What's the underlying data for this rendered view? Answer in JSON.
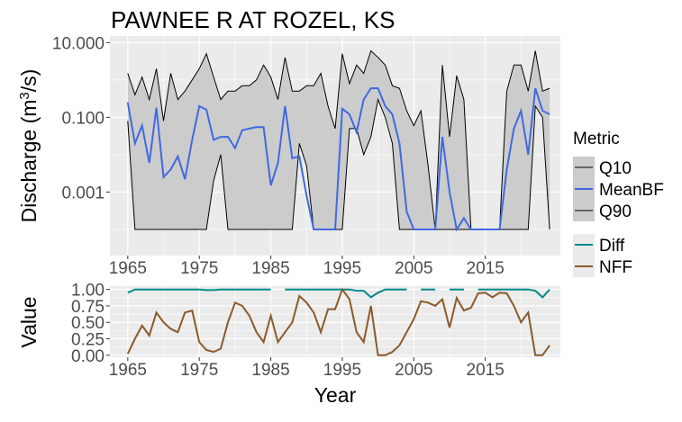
{
  "colors": {
    "panel_bg": "#ebebeb",
    "ribbon_fill": "#cccccc",
    "q_line": "#000000",
    "meanbf": "#4169e1",
    "diff": "#008b8b",
    "nff": "#8b5a2b",
    "axis_text": "#4d4d4d"
  },
  "chart_data": [
    {
      "type": "line",
      "title": "PAWNEE R AT ROZEL, KS",
      "ylabel_prefix": "Discharge (m",
      "ylabel_sup": "3",
      "ylabel_suffix": "/s)",
      "xlabel": "",
      "yscale": "log10",
      "ylim": [
        2e-05,
        15
      ],
      "xlim": [
        1962.5,
        2025.5
      ],
      "xticks": [
        "1965",
        "1975",
        "1985",
        "1995",
        "2005",
        "2015"
      ],
      "yticks": [
        "10.000",
        "0.100",
        "0.001"
      ],
      "x": [
        1965,
        1966,
        1967,
        1968,
        1969,
        1970,
        1971,
        1972,
        1973,
        1974,
        1975,
        1976,
        1977,
        1978,
        1979,
        1980,
        1981,
        1982,
        1983,
        1984,
        1985,
        1986,
        1987,
        1988,
        1989,
        1990,
        1991,
        1992,
        1993,
        1994,
        1995,
        1996,
        1997,
        1998,
        1999,
        2000,
        2001,
        2002,
        2003,
        2004,
        2005,
        2006,
        2007,
        2008,
        2009,
        2010,
        2011,
        2012,
        2013,
        2014,
        2015,
        2016,
        2017,
        2018,
        2019,
        2020,
        2021,
        2022,
        2023,
        2024
      ],
      "series": [
        {
          "name": "Q10",
          "values": [
            0.08,
            0.0001,
            0.0001,
            0.0001,
            0.0001,
            0.0001,
            0.0001,
            0.0001,
            0.0001,
            0.0001,
            0.0001,
            0.0001,
            0.002,
            0.01,
            0.0001,
            0.0001,
            0.0001,
            0.0001,
            0.0001,
            0.0001,
            0.0001,
            0.0001,
            0.0001,
            0.0001,
            0.02,
            0.005,
            0.0001,
            0.0001,
            0.0001,
            0.0001,
            0.0001,
            0.05,
            0.05,
            0.01,
            0.03,
            0.3,
            0.1,
            0.02,
            0.0001,
            0.0001,
            0.0001,
            0.0001,
            0.0001,
            0.0001,
            0.0001,
            0.0001,
            0.0001,
            0.0001,
            0.0001,
            0.0001,
            0.0001,
            0.0001,
            0.0001,
            0.0001,
            0.0001,
            0.0001,
            0.0001,
            0.2,
            0.1,
            0.0001
          ]
        },
        {
          "name": "MeanBF",
          "values": [
            0.25,
            0.02,
            0.06,
            0.006,
            0.18,
            0.0025,
            0.004,
            0.009,
            0.0022,
            0.025,
            0.2,
            0.16,
            0.025,
            0.03,
            0.03,
            0.015,
            0.045,
            0.05,
            0.055,
            0.055,
            0.0015,
            0.006,
            0.2,
            0.008,
            0.009,
            0.0008,
            0.0001,
            0.0001,
            0.0001,
            0.0001,
            0.17,
            0.12,
            0.04,
            0.3,
            0.6,
            0.6,
            0.2,
            0.12,
            0.02,
            0.0003,
            0.0001,
            0.0001,
            0.0001,
            0.0001,
            0.03,
            0.001,
            0.0001,
            0.0002,
            0.0001,
            0.0001,
            0.0001,
            0.0001,
            0.0001,
            0.004,
            0.05,
            0.15,
            0.01,
            0.6,
            0.15,
            0.12
          ]
        },
        {
          "name": "Q90",
          "values": [
            1.5,
            0.4,
            1.2,
            0.3,
            2,
            0.08,
            1.5,
            0.3,
            0.5,
            1,
            2,
            5,
            1.2,
            0.3,
            0.5,
            0.5,
            0.7,
            0.7,
            1,
            2.5,
            1.2,
            0.3,
            4,
            0.5,
            0.5,
            0.7,
            0.7,
            1.5,
            0.2,
            0.05,
            5,
            0.8,
            2.5,
            1.5,
            6,
            4,
            2.5,
            0.7,
            0.6,
            0.15,
            0.06,
            0.15,
            0.005,
            0.0001,
            2.5,
            0.03,
            1.3,
            0.3,
            0.0001,
            0.0001,
            0.0001,
            0.0001,
            0.0001,
            0.5,
            2.5,
            2.5,
            0.5,
            6,
            0.5,
            0.6
          ]
        }
      ],
      "legend": {
        "title": "Metric",
        "placement": "right",
        "entries": [
          "Q10",
          "MeanBF",
          "Q90"
        ]
      }
    },
    {
      "type": "line",
      "title": "",
      "ylabel": "Value",
      "xlabel": "Year",
      "ylim": [
        -0.03,
        1.05
      ],
      "xlim": [
        1962.5,
        2025.5
      ],
      "xticks": [
        "1965",
        "1975",
        "1985",
        "1995",
        "2005",
        "2015"
      ],
      "yticks": [
        "1.00",
        "0.75",
        "0.50",
        "0.25",
        "0.00"
      ],
      "x": [
        1965,
        1966,
        1967,
        1968,
        1969,
        1970,
        1971,
        1972,
        1973,
        1974,
        1975,
        1976,
        1977,
        1978,
        1979,
        1980,
        1981,
        1982,
        1983,
        1984,
        1985,
        1986,
        1987,
        1988,
        1989,
        1990,
        1991,
        1992,
        1993,
        1994,
        1995,
        1996,
        1997,
        1998,
        1999,
        2000,
        2001,
        2002,
        2003,
        2004,
        2005,
        2006,
        2007,
        2008,
        2009,
        2010,
        2011,
        2012,
        2013,
        2014,
        2015,
        2016,
        2017,
        2018,
        2019,
        2020,
        2021,
        2022,
        2023,
        2024
      ],
      "series": [
        {
          "name": "Diff",
          "values": [
            0.95,
            1.0,
            1.0,
            1.0,
            1.0,
            1.0,
            1.0,
            1.0,
            1.0,
            1.0,
            1.0,
            0.99,
            0.99,
            1.0,
            1.0,
            1.0,
            1.0,
            1.0,
            1.0,
            1.0,
            1.0,
            null,
            1.0,
            1.0,
            1.0,
            1.0,
            1.0,
            1.0,
            1.0,
            1.0,
            1.0,
            1.0,
            0.98,
            0.98,
            0.88,
            0.95,
            1.0,
            1.0,
            1.0,
            1.0,
            null,
            1.0,
            1.0,
            1.0,
            null,
            1.0,
            1.0,
            1.0,
            null,
            1.0,
            1.0,
            1.0,
            1.0,
            1.0,
            1.0,
            1.0,
            1.0,
            0.98,
            0.88,
            1.0
          ]
        },
        {
          "name": "NFF",
          "values": [
            0.02,
            0.25,
            0.45,
            0.3,
            0.65,
            0.5,
            0.4,
            0.35,
            0.65,
            0.68,
            0.2,
            0.08,
            0.05,
            0.1,
            0.5,
            0.8,
            0.75,
            0.6,
            0.35,
            0.2,
            0.6,
            0.2,
            0.35,
            0.5,
            0.9,
            0.8,
            0.65,
            0.35,
            0.7,
            0.7,
            1.0,
            0.85,
            0.35,
            0.2,
            0.75,
            0.0,
            0.0,
            0.05,
            0.15,
            0.35,
            0.55,
            0.82,
            0.8,
            0.75,
            0.85,
            0.42,
            0.87,
            0.68,
            0.72,
            0.94,
            0.95,
            0.88,
            0.95,
            0.94,
            0.75,
            0.5,
            0.65,
            0.0,
            0.0,
            0.15
          ]
        }
      ],
      "legend": {
        "title": "",
        "placement": "right",
        "entries": [
          "Diff",
          "NFF"
        ]
      }
    }
  ]
}
